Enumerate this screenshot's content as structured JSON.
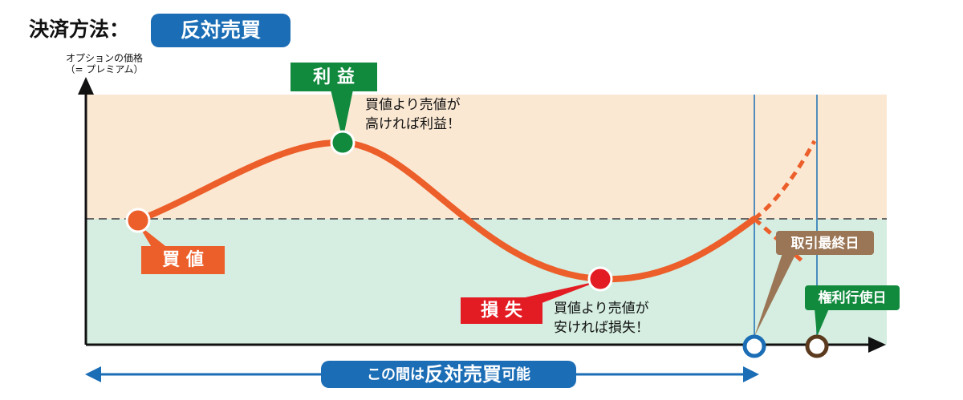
{
  "header": {
    "label": "決済方法：",
    "method": "反対売買"
  },
  "y_axis": {
    "label_lines": [
      "オプションの価格",
      "（= プレミアム）"
    ]
  },
  "profit": {
    "badge": "利 益",
    "note_lines": [
      "買値より売値が",
      "高ければ利益！"
    ]
  },
  "buy": {
    "badge": "買 値"
  },
  "loss": {
    "badge": "損 失",
    "note_lines": [
      "買値より売値が",
      "安ければ損失！"
    ]
  },
  "last_trading_day": "取引最終日",
  "exercise_day": "権利行使日",
  "span": {
    "parts": [
      "この間は",
      "反対売買",
      "可能"
    ]
  }
}
